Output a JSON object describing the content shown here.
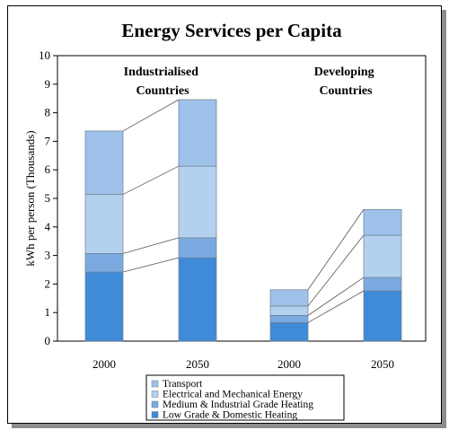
{
  "chart_data": {
    "type": "bar",
    "stacked": true,
    "title": "Energy Services per Capita",
    "ylabel": "kWh per person (Thousands)",
    "xlabel": "",
    "ylim": [
      0,
      10
    ],
    "yticks": [
      0,
      1,
      2,
      3,
      4,
      5,
      6,
      7,
      8,
      9,
      10
    ],
    "grid": false,
    "legend_position": "bottom",
    "groups": [
      {
        "label": "Industrialised Countries",
        "label_lines": [
          "Industrialised",
          "Countries"
        ]
      },
      {
        "label": "Developing Countries",
        "label_lines": [
          "Developing",
          "Countries"
        ]
      }
    ],
    "categories": [
      "2000",
      "2050",
      "2000",
      "2050"
    ],
    "series": [
      {
        "name": "Low Grade & Domestic Heating",
        "color": "#3f8bd8",
        "values": [
          2.42,
          2.92,
          0.65,
          1.76
        ]
      },
      {
        "name": "Medium & Industrial Grade Heating",
        "color": "#7aaae0",
        "values": [
          0.65,
          0.7,
          0.25,
          0.47
        ]
      },
      {
        "name": "Electrical and Mechanical Energy",
        "color": "#b4d0ef",
        "values": [
          2.07,
          2.51,
          0.33,
          1.48
        ]
      },
      {
        "name": "Transport",
        "color": "#9ec2ea",
        "values": [
          2.22,
          2.33,
          0.57,
          0.9
        ]
      }
    ]
  }
}
